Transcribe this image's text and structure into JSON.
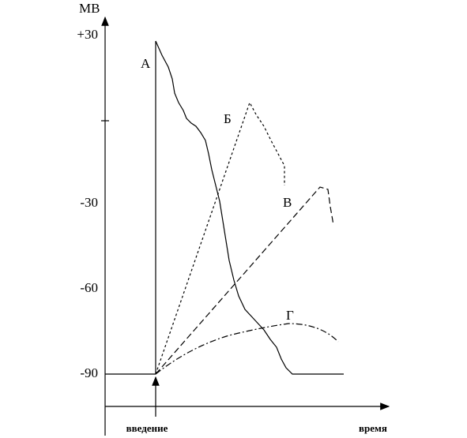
{
  "axis": {
    "y_title": "МВ",
    "x_title": "время",
    "y_labels": [
      "+30",
      "-30",
      "-60",
      "-90"
    ],
    "marker": "введение"
  },
  "curves": [
    {
      "label": "А"
    },
    {
      "label": "Б"
    },
    {
      "label": "В"
    },
    {
      "label": "Г"
    }
  ]
}
